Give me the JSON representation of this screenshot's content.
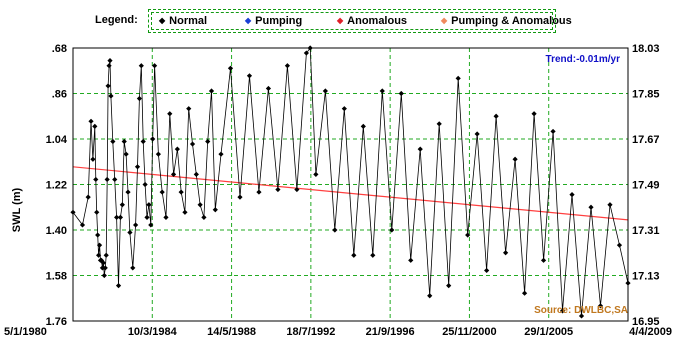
{
  "legend": {
    "title": "Legend:",
    "items": [
      {
        "label": "Normal",
        "symbol": "◆",
        "color": "#000000"
      },
      {
        "label": "Pumping",
        "symbol": "◆",
        "color": "#1a3fd6"
      },
      {
        "label": "Anomalous",
        "symbol": "◆",
        "color": "#e0202a"
      },
      {
        "label": "Pumping & Anomalous",
        "symbol": "◆",
        "color": "#f08a5d"
      }
    ]
  },
  "colors": {
    "grid": "#22aa22",
    "series": "#000000",
    "trend": "#ff4040",
    "trend_text": "#1010c8",
    "source_text": "#c07820"
  },
  "chart_data": {
    "type": "line",
    "ylabel": "SWL (m)",
    "ylim": [
      1.76,
      0.68
    ],
    "y_inverted": true,
    "y_ticks": [
      ".68",
      ".86",
      "1.04",
      "1.22",
      "1.40",
      "1.58",
      "1.76"
    ],
    "y2_ticks": [
      "18.03",
      "17.85",
      "17.67",
      "17.49",
      "17.31",
      "17.13",
      "16.95"
    ],
    "xlim": [
      1980.0,
      2009.25
    ],
    "x_ticks": [
      "5/1/1980",
      "10/3/1984",
      "14/5/1988",
      "18/7/1992",
      "21/9/1996",
      "25/11/2000",
      "29/1/2005",
      "4/4/2009"
    ],
    "grid": true,
    "trend_text": "Trend:-0.01m/yr",
    "source_text": "Source: DWLBC,SA",
    "trend_line": {
      "x": [
        1980.0,
        2009.25
      ],
      "y": [
        1.15,
        1.36
      ]
    },
    "series": [
      {
        "legend": "Normal",
        "x": [
          1980.0,
          1980.5,
          1980.8,
          1980.95,
          1981.05,
          1981.15,
          1981.2,
          1981.25,
          1981.3,
          1981.35,
          1981.4,
          1981.45,
          1981.5,
          1981.55,
          1981.6,
          1981.65,
          1981.7,
          1981.75,
          1981.8,
          1981.85,
          1981.9,
          1981.95,
          1982.0,
          1982.1,
          1982.2,
          1982.3,
          1982.4,
          1982.5,
          1982.6,
          1982.7,
          1982.8,
          1982.9,
          1983.0,
          1983.15,
          1983.3,
          1983.4,
          1983.5,
          1983.6,
          1983.7,
          1983.8,
          1983.9,
          1984.0,
          1984.1,
          1984.2,
          1984.3,
          1984.5,
          1984.7,
          1984.9,
          1985.1,
          1985.3,
          1985.5,
          1985.7,
          1985.9,
          1986.1,
          1986.3,
          1986.5,
          1986.7,
          1986.9,
          1987.1,
          1987.3,
          1987.5,
          1987.8,
          1988.3,
          1988.8,
          1989.3,
          1989.8,
          1990.3,
          1990.8,
          1991.3,
          1991.8,
          1992.3,
          1992.5,
          1992.8,
          1993.3,
          1993.8,
          1994.3,
          1994.8,
          1995.3,
          1995.8,
          1996.3,
          1996.8,
          1997.3,
          1997.8,
          1998.3,
          1998.8,
          1999.3,
          1999.8,
          2000.3,
          2000.8,
          2001.3,
          2001.8,
          2002.3,
          2002.8,
          2003.3,
          2003.8,
          2004.3,
          2004.8,
          2005.3,
          2005.8,
          2006.3,
          2006.8,
          2007.3,
          2007.8,
          2008.3,
          2008.8,
          2009.25
        ],
        "y": [
          1.33,
          1.38,
          1.27,
          0.97,
          1.12,
          0.99,
          1.2,
          1.33,
          1.42,
          1.5,
          1.46,
          1.52,
          1.52,
          1.55,
          1.53,
          1.58,
          1.55,
          1.5,
          1.2,
          0.83,
          0.75,
          0.73,
          0.87,
          1.05,
          1.2,
          1.35,
          1.62,
          1.35,
          1.3,
          1.05,
          1.1,
          1.25,
          1.41,
          1.55,
          1.38,
          1.15,
          0.88,
          0.75,
          1.05,
          1.22,
          1.35,
          1.3,
          1.38,
          1.04,
          0.75,
          1.1,
          1.25,
          1.35,
          0.94,
          1.18,
          1.08,
          1.25,
          1.33,
          0.92,
          1.06,
          1.18,
          1.3,
          1.35,
          1.05,
          0.85,
          1.32,
          1.1,
          0.76,
          1.27,
          0.79,
          1.25,
          0.84,
          1.24,
          0.75,
          1.24,
          0.7,
          0.68,
          1.18,
          0.85,
          1.4,
          0.92,
          1.5,
          0.99,
          1.5,
          0.85,
          1.4,
          0.86,
          1.52,
          1.08,
          1.66,
          0.98,
          1.62,
          0.8,
          1.42,
          1.02,
          1.56,
          0.95,
          1.49,
          1.12,
          1.65,
          0.94,
          1.52,
          1.01,
          1.72,
          1.26,
          1.74,
          1.31,
          1.7,
          1.3,
          1.46,
          1.61
        ]
      }
    ]
  }
}
